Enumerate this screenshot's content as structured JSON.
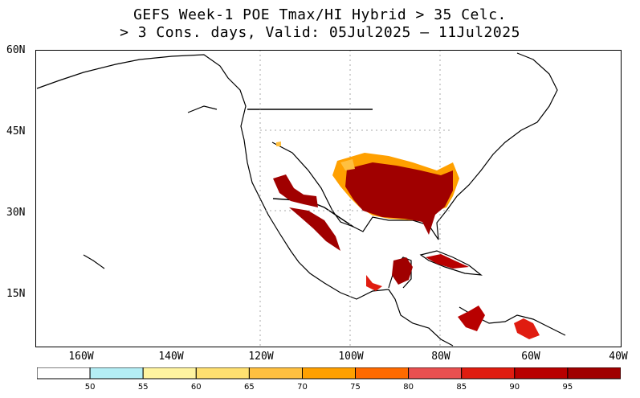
{
  "title": {
    "line1": "GEFS Week-1 POE Tmax/HI Hybrid > 35 Celc.",
    "line2": "> 3 Cons. days, Valid: 05Jul2025 – 11Jul2025"
  },
  "lat_labels": [
    "60N",
    "45N",
    "30N",
    "15N"
  ],
  "lon_labels": [
    "160W",
    "140W",
    "120W",
    "100W",
    "80W",
    "60W",
    "40W"
  ],
  "colorbar": {
    "ticks": [
      "50",
      "55",
      "60",
      "65",
      "70",
      "75",
      "80",
      "85",
      "90",
      "95"
    ],
    "colors": [
      "#ffffff",
      "#b4eef5",
      "#fff4a0",
      "#ffe070",
      "#ffc040",
      "#ffa000",
      "#ff6a00",
      "#e85050",
      "#e01c10",
      "#b80000",
      "#a00000"
    ]
  },
  "map": {
    "extent_lon": [
      -170,
      -40
    ],
    "extent_lat": [
      5,
      60
    ],
    "high_prob_regions": [
      {
        "name": "Central-Southern US",
        "level": "95+"
      },
      {
        "name": "Southwest US / Arizona",
        "level": "95+"
      },
      {
        "name": "Northern Mexico",
        "level": "95+"
      },
      {
        "name": "Florida",
        "level": "95+"
      },
      {
        "name": "Yucatan",
        "level": "95+"
      },
      {
        "name": "Cuba",
        "level": "90-95"
      },
      {
        "name": "Northern South America",
        "level": "90-95"
      }
    ]
  }
}
